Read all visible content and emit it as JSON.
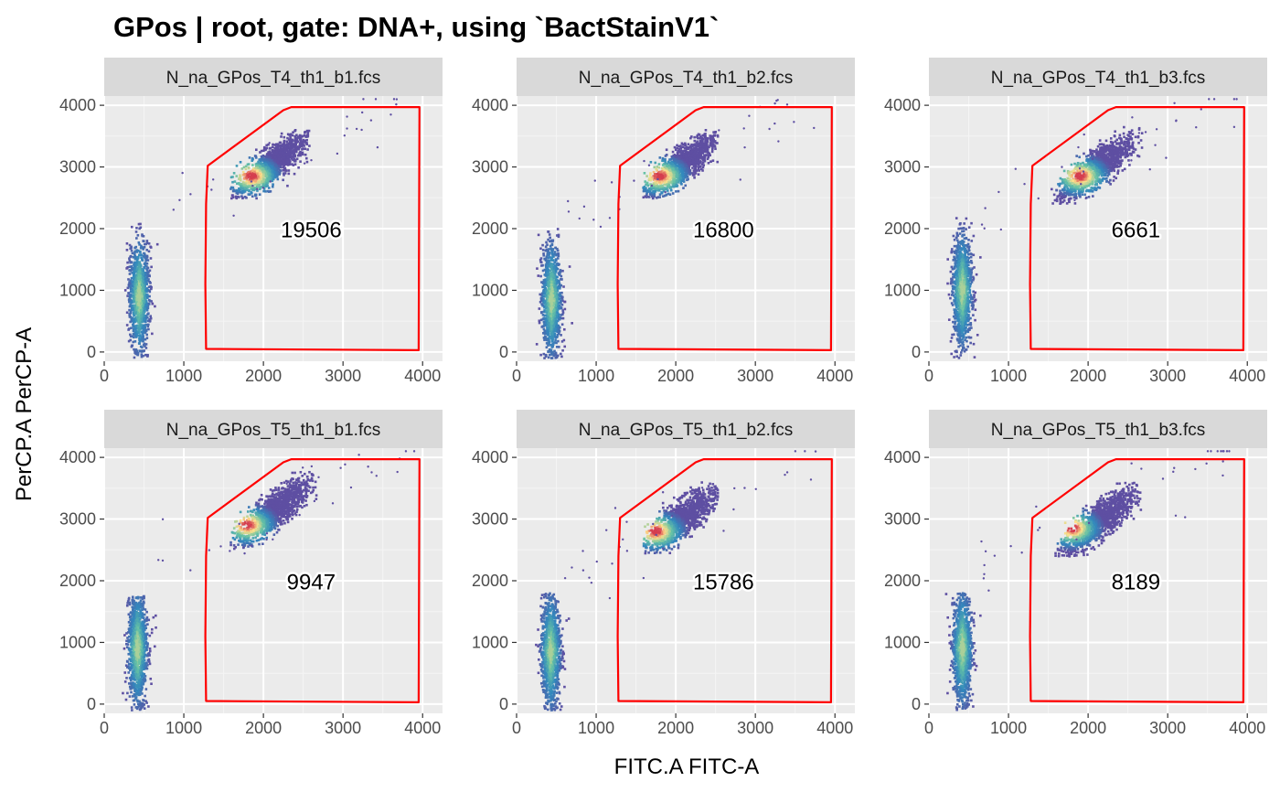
{
  "chart_data": {
    "type": "scatter",
    "title": "GPos  |  root, gate: DNA+, using `BactStainV1`",
    "xlabel": "FITC.A FITC-A",
    "ylabel": "PerCP.A PerCP-A",
    "xlim": [
      0,
      4250
    ],
    "ylim": [
      -150,
      4150
    ],
    "xticks": [
      0,
      1000,
      2000,
      3000,
      4000
    ],
    "yticks": [
      0,
      1000,
      2000,
      3000,
      4000
    ],
    "grid": true,
    "colors": {
      "panel_background": "#ebebeb",
      "grid": "#ffffff",
      "strip_background": "#d9d9d9",
      "gate": "#ff0000",
      "density_low": "#5e4fa2",
      "density_mid": "#66c2a5",
      "density_high": "#fee08b",
      "density_max": "#d53e4f"
    },
    "gate_polygon": [
      [
        1300,
        3020
      ],
      [
        1280,
        2400
      ],
      [
        1270,
        1100
      ],
      [
        1280,
        50
      ],
      [
        3950,
        30
      ],
      [
        3960,
        3970
      ],
      [
        2350,
        3970
      ],
      [
        2250,
        3920
      ]
    ],
    "panels": [
      {
        "label": "N_na_GPos_T4_th1_b1.fcs",
        "count": "19506",
        "count_pos": [
          2600,
          1990
        ]
      },
      {
        "label": "N_na_GPos_T4_th1_b2.fcs",
        "count": "16800",
        "count_pos": [
          2600,
          1990
        ]
      },
      {
        "label": "N_na_GPos_T4_th1_b3.fcs",
        "count": "6661",
        "count_pos": [
          2600,
          1990
        ]
      },
      {
        "label": "N_na_GPos_T5_th1_b1.fcs",
        "count": "9947",
        "count_pos": [
          2600,
          1990
        ]
      },
      {
        "label": "N_na_GPos_T5_th1_b2.fcs",
        "count": "15786",
        "count_pos": [
          2600,
          1990
        ]
      },
      {
        "label": "N_na_GPos_T5_th1_b3.fcs",
        "count": "8189",
        "count_pos": [
          2600,
          1990
        ]
      }
    ],
    "populations": [
      {
        "negative": {
          "x": 440,
          "y_min": -100,
          "y_max": 2100,
          "center": 900
        },
        "positive": {
          "x": [
            1650,
            2500
          ],
          "y": [
            2550,
            3450
          ],
          "peak": [
            1850,
            2850
          ]
        }
      },
      {
        "negative": {
          "x": 440,
          "y_min": -100,
          "y_max": 2000,
          "center": 850
        },
        "positive": {
          "x": [
            1650,
            2450
          ],
          "y": [
            2550,
            3450
          ],
          "peak": [
            1800,
            2850
          ]
        }
      },
      {
        "negative": {
          "x": 420,
          "y_min": -100,
          "y_max": 2200,
          "center": 1000
        },
        "positive": {
          "x": [
            1600,
            2600
          ],
          "y": [
            2450,
            3500
          ],
          "peak": [
            1900,
            2850
          ]
        }
      },
      {
        "negative": {
          "x": 420,
          "y_min": -100,
          "y_max": 1750,
          "center": 900
        },
        "positive": {
          "x": [
            1650,
            2600
          ],
          "y": [
            2550,
            3700
          ],
          "peak": [
            1800,
            2900
          ]
        }
      },
      {
        "negative": {
          "x": 430,
          "y_min": -100,
          "y_max": 1800,
          "center": 850
        },
        "positive": {
          "x": [
            1650,
            2450
          ],
          "y": [
            2500,
            3450
          ],
          "peak": [
            1750,
            2800
          ]
        }
      },
      {
        "negative": {
          "x": 420,
          "y_min": -100,
          "y_max": 1800,
          "center": 900
        },
        "positive": {
          "x": [
            1650,
            2600
          ],
          "y": [
            2450,
            3450
          ],
          "peak": [
            1800,
            2850
          ]
        }
      }
    ]
  }
}
